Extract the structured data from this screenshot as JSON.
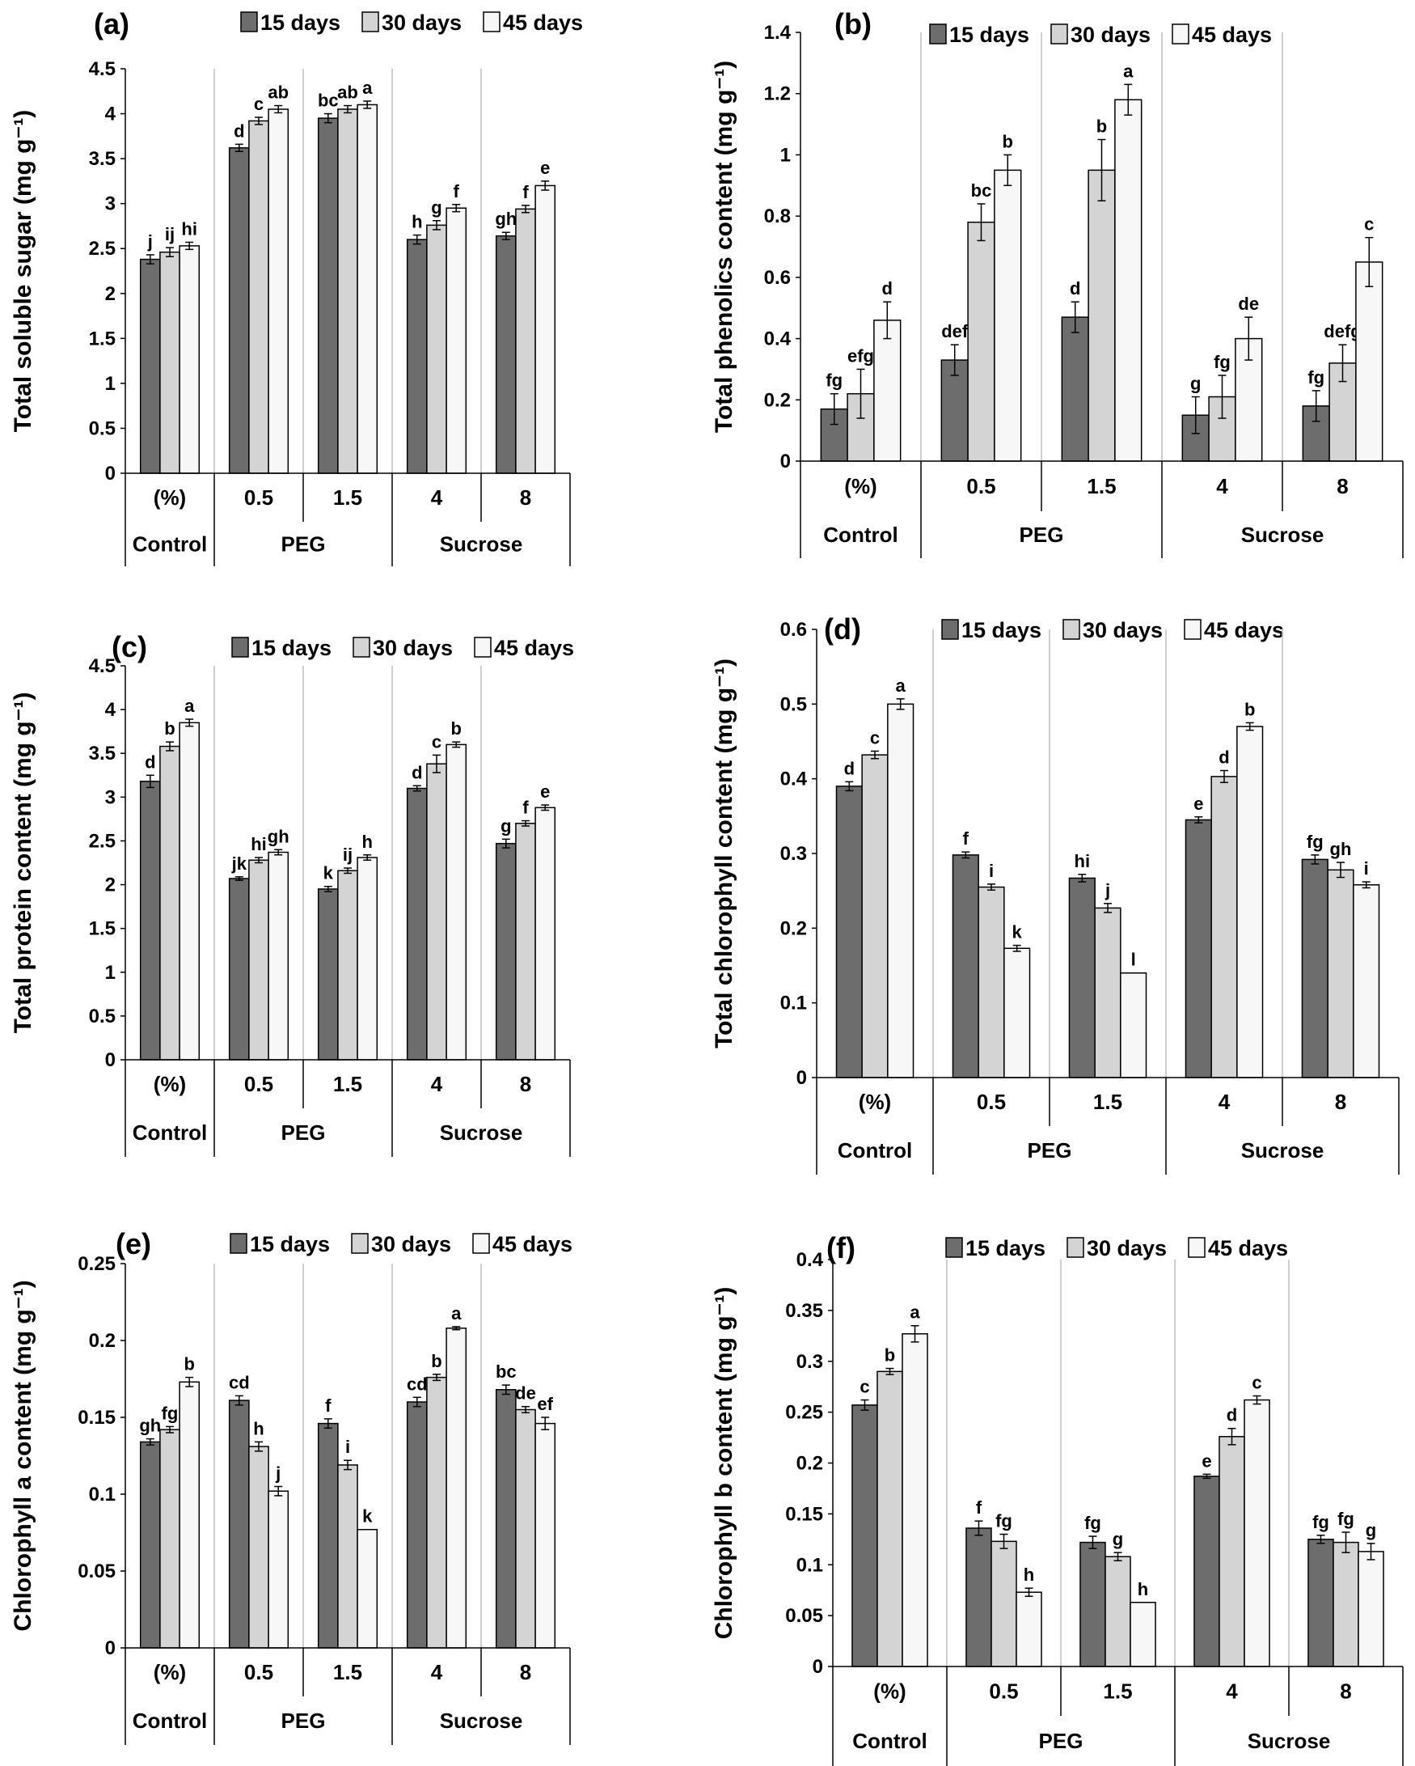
{
  "chart_data": [
    {
      "type": "bar",
      "panel": "(a)",
      "ylabel": "Total soluble sugar (mg g⁻¹)",
      "ylim": [
        0,
        4.5
      ],
      "yticks": [
        "0",
        "0.5",
        "1",
        "1.5",
        "2",
        "2.5",
        "3",
        "3.5",
        "4",
        "4.5"
      ],
      "categories": [
        "(%)",
        "0.5",
        "1.5",
        "4",
        "8"
      ],
      "groups": [
        {
          "label": "Control",
          "span": 1
        },
        {
          "label": "PEG",
          "span": 2
        },
        {
          "label": "Sucrose",
          "span": 2
        }
      ],
      "series": [
        {
          "name": "15 days",
          "values": [
            2.38,
            3.62,
            3.95,
            2.6,
            2.64
          ],
          "errors": [
            0.05,
            0.04,
            0.05,
            0.05,
            0.04
          ],
          "letters": [
            "j",
            "d",
            "bc",
            "h",
            "gh"
          ]
        },
        {
          "name": "30 days",
          "values": [
            2.46,
            3.92,
            4.05,
            2.76,
            2.94
          ],
          "errors": [
            0.05,
            0.04,
            0.04,
            0.05,
            0.04
          ],
          "letters": [
            "ij",
            "c",
            "ab",
            "g",
            "f"
          ]
        },
        {
          "name": "45 days",
          "values": [
            2.53,
            4.05,
            4.1,
            2.95,
            3.2
          ],
          "errors": [
            0.04,
            0.04,
            0.04,
            0.04,
            0.05
          ],
          "letters": [
            "hi",
            "ab",
            "a",
            "f",
            "e"
          ]
        }
      ]
    },
    {
      "type": "bar",
      "panel": "(b)",
      "ylabel": "Total phenolics content (mg g⁻¹)",
      "ylim": [
        0,
        1.4
      ],
      "yticks": [
        "0",
        "0.2",
        "0.4",
        "0.6",
        "0.8",
        "1",
        "1.2",
        "1.4"
      ],
      "categories": [
        "(%)",
        "0.5",
        "1.5",
        "4",
        "8"
      ],
      "groups": [
        {
          "label": "Control",
          "span": 1
        },
        {
          "label": "PEG",
          "span": 2
        },
        {
          "label": "Sucrose",
          "span": 2
        }
      ],
      "series": [
        {
          "name": "15 days",
          "values": [
            0.17,
            0.33,
            0.47,
            0.15,
            0.18
          ],
          "errors": [
            0.05,
            0.05,
            0.05,
            0.06,
            0.05
          ],
          "letters": [
            "fg",
            "def",
            "d",
            "g",
            "fg"
          ]
        },
        {
          "name": "30 days",
          "values": [
            0.22,
            0.78,
            0.95,
            0.21,
            0.32
          ],
          "errors": [
            0.08,
            0.06,
            0.1,
            0.07,
            0.06
          ],
          "letters": [
            "efg",
            "bc",
            "b",
            "fg",
            "defg"
          ]
        },
        {
          "name": "45 days",
          "values": [
            0.46,
            0.95,
            1.18,
            0.4,
            0.65
          ],
          "errors": [
            0.06,
            0.05,
            0.05,
            0.07,
            0.08
          ],
          "letters": [
            "d",
            "b",
            "a",
            "de",
            "c"
          ]
        }
      ]
    },
    {
      "type": "bar",
      "panel": "(c)",
      "ylabel": "Total protein content (mg g⁻¹)",
      "ylim": [
        0,
        4.5
      ],
      "yticks": [
        "0",
        "0.5",
        "1",
        "1.5",
        "2",
        "2.5",
        "3",
        "3.5",
        "4",
        "4.5"
      ],
      "categories": [
        "(%)",
        "0.5",
        "1.5",
        "4",
        "8"
      ],
      "groups": [
        {
          "label": "Control",
          "span": 1
        },
        {
          "label": "PEG",
          "span": 2
        },
        {
          "label": "Sucrose",
          "span": 2
        }
      ],
      "series": [
        {
          "name": "15 days",
          "values": [
            3.18,
            2.07,
            1.95,
            3.1,
            2.47
          ],
          "errors": [
            0.07,
            0.02,
            0.03,
            0.03,
            0.05
          ],
          "letters": [
            "d",
            "jk",
            "k",
            "d",
            "g"
          ]
        },
        {
          "name": "30 days",
          "values": [
            3.58,
            2.28,
            2.16,
            3.38,
            2.7
          ],
          "errors": [
            0.05,
            0.03,
            0.03,
            0.1,
            0.03
          ],
          "letters": [
            "b",
            "hi",
            "ij",
            "c",
            "f"
          ]
        },
        {
          "name": "45 days",
          "values": [
            3.85,
            2.37,
            2.31,
            3.6,
            2.88
          ],
          "errors": [
            0.04,
            0.03,
            0.03,
            0.03,
            0.03
          ],
          "letters": [
            "a",
            "gh",
            "h",
            "b",
            "e"
          ]
        }
      ]
    },
    {
      "type": "bar",
      "panel": "(d)",
      "ylabel": "Total chlorophyll content (mg g⁻¹)",
      "ylim": [
        0,
        0.6
      ],
      "yticks": [
        "0",
        "0.1",
        "0.2",
        "0.3",
        "0.4",
        "0.5",
        "0.6"
      ],
      "categories": [
        "(%)",
        "0.5",
        "1.5",
        "4",
        "8"
      ],
      "groups": [
        {
          "label": "Control",
          "span": 1
        },
        {
          "label": "PEG",
          "span": 2
        },
        {
          "label": "Sucrose",
          "span": 2
        }
      ],
      "series": [
        {
          "name": "15 days",
          "values": [
            0.39,
            0.298,
            0.267,
            0.345,
            0.292
          ],
          "errors": [
            0.006,
            0.004,
            0.005,
            0.004,
            0.006
          ],
          "letters": [
            "d",
            "f",
            "hi",
            "e",
            "fg"
          ]
        },
        {
          "name": "30 days",
          "values": [
            0.432,
            0.255,
            0.227,
            0.403,
            0.278
          ],
          "errors": [
            0.005,
            0.004,
            0.006,
            0.008,
            0.01
          ],
          "letters": [
            "c",
            "i",
            "j",
            "d",
            "gh"
          ]
        },
        {
          "name": "45 days",
          "values": [
            0.5,
            0.173,
            0.14,
            0.47,
            0.258
          ],
          "errors": [
            0.007,
            0.004,
            0.0,
            0.005,
            0.004
          ],
          "letters": [
            "a",
            "k",
            "l",
            "b",
            "i"
          ]
        }
      ]
    },
    {
      "type": "bar",
      "panel": "(e)",
      "ylabel": "Chlorophyll a content (mg g⁻¹)",
      "ylim": [
        0,
        0.25
      ],
      "yticks": [
        "0",
        "0.05",
        "0.1",
        "0.15",
        "0.2",
        "0.25"
      ],
      "categories": [
        "(%)",
        "0.5",
        "1.5",
        "4",
        "8"
      ],
      "groups": [
        {
          "label": "Control",
          "span": 1
        },
        {
          "label": "PEG",
          "span": 2
        },
        {
          "label": "Sucrose",
          "span": 2
        }
      ],
      "series": [
        {
          "name": "15 days",
          "values": [
            0.134,
            0.161,
            0.146,
            0.16,
            0.168
          ],
          "errors": [
            0.002,
            0.003,
            0.003,
            0.003,
            0.003
          ],
          "letters": [
            "gh",
            "cd",
            "f",
            "cd",
            "bc"
          ]
        },
        {
          "name": "30 days",
          "values": [
            0.142,
            0.131,
            0.119,
            0.176,
            0.155
          ],
          "errors": [
            0.002,
            0.003,
            0.003,
            0.002,
            0.002
          ],
          "letters": [
            "fg",
            "h",
            "i",
            "b",
            "de"
          ]
        },
        {
          "name": "45 days",
          "values": [
            0.173,
            0.102,
            0.077,
            0.208,
            0.146
          ],
          "errors": [
            0.003,
            0.003,
            0.0,
            0.001,
            0.004
          ],
          "letters": [
            "b",
            "j",
            "k",
            "a",
            "ef"
          ]
        }
      ]
    },
    {
      "type": "bar",
      "panel": "(f)",
      "ylabel": "Chlorophyll b content (mg g⁻¹)",
      "ylim": [
        0,
        0.4
      ],
      "yticks": [
        "0",
        "0.05",
        "0.1",
        "0.15",
        "0.2",
        "0.25",
        "0.3",
        "0.35",
        "0.4"
      ],
      "categories": [
        "(%)",
        "0.5",
        "1.5",
        "4",
        "8"
      ],
      "groups": [
        {
          "label": "Control",
          "span": 1
        },
        {
          "label": "PEG",
          "span": 2
        },
        {
          "label": "Sucrose",
          "span": 2
        }
      ],
      "series": [
        {
          "name": "15 days",
          "values": [
            0.257,
            0.136,
            0.122,
            0.187,
            0.125
          ],
          "errors": [
            0.005,
            0.007,
            0.006,
            0.002,
            0.004
          ],
          "letters": [
            "c",
            "f",
            "fg",
            "e",
            "fg"
          ]
        },
        {
          "name": "30 days",
          "values": [
            0.29,
            0.123,
            0.108,
            0.226,
            0.122
          ],
          "errors": [
            0.003,
            0.007,
            0.004,
            0.008,
            0.01
          ],
          "letters": [
            "b",
            "fg",
            "g",
            "d",
            "fg"
          ]
        },
        {
          "name": "45 days",
          "values": [
            0.327,
            0.073,
            0.063,
            0.262,
            0.113
          ],
          "errors": [
            0.008,
            0.004,
            0.0,
            0.004,
            0.008
          ],
          "letters": [
            "a",
            "h",
            "h",
            "c",
            "g"
          ]
        }
      ]
    }
  ],
  "colors": {
    "series": [
      "#6d6d6d",
      "#d4d4d4",
      "#f7f7f7"
    ],
    "stroke": "#000000",
    "divider": "#bfbfbf"
  }
}
